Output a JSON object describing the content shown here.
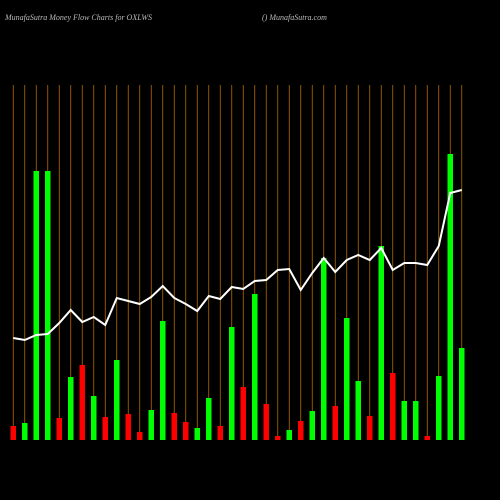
{
  "chart_data": {
    "type": "bar",
    "title": "MunafaSutra  Money Flow  Charts for OXLWS",
    "subtitle": "() MunafaSutra.com",
    "categories": [
      null,
      null,
      null,
      null,
      null,
      null,
      null,
      null,
      null,
      null,
      null,
      null,
      null,
      null,
      null,
      null,
      null,
      null,
      null,
      null,
      null,
      null,
      null,
      null,
      null,
      null,
      null,
      null,
      null,
      null,
      null,
      null,
      null,
      null,
      null,
      null,
      null,
      null,
      null,
      null
    ],
    "ylim": [
      0,
      300
    ],
    "bars": {
      "values": [
        14,
        17,
        269,
        269,
        22,
        63,
        75,
        44,
        23,
        80,
        26,
        8,
        30,
        119,
        27,
        18,
        12,
        42,
        14,
        113,
        53,
        146,
        36,
        4,
        10,
        19,
        29,
        182,
        34,
        122,
        59,
        24,
        194,
        67,
        39,
        39,
        4,
        64,
        286,
        92
      ],
      "colors": [
        "#ff0000",
        "#00ff00",
        "#00ff00",
        "#00ff00",
        "#ff0000",
        "#00ff00",
        "#ff0000",
        "#00ff00",
        "#ff0000",
        "#00ff00",
        "#ff0000",
        "#ff0000",
        "#00ff00",
        "#00ff00",
        "#ff0000",
        "#ff0000",
        "#00ff00",
        "#00ff00",
        "#ff0000",
        "#00ff00",
        "#ff0000",
        "#00ff00",
        "#ff0000",
        "#ff0000",
        "#00ff00",
        "#ff0000",
        "#00ff00",
        "#00ff00",
        "#ff0000",
        "#00ff00",
        "#00ff00",
        "#ff0000",
        "#00ff00",
        "#ff0000",
        "#00ff00",
        "#00ff00",
        "#ff0000",
        "#00ff00",
        "#00ff00",
        "#00ff00"
      ]
    },
    "line": {
      "color": "#ffffff",
      "values": [
        102,
        100,
        105,
        106,
        117,
        130,
        118,
        123,
        115,
        142,
        139,
        136,
        143,
        154,
        142,
        136,
        129,
        144,
        141,
        153,
        151,
        159,
        160,
        170,
        171,
        150,
        167,
        182,
        168,
        180,
        185,
        180,
        192,
        170,
        177,
        177,
        175,
        194,
        247,
        250
      ]
    }
  }
}
